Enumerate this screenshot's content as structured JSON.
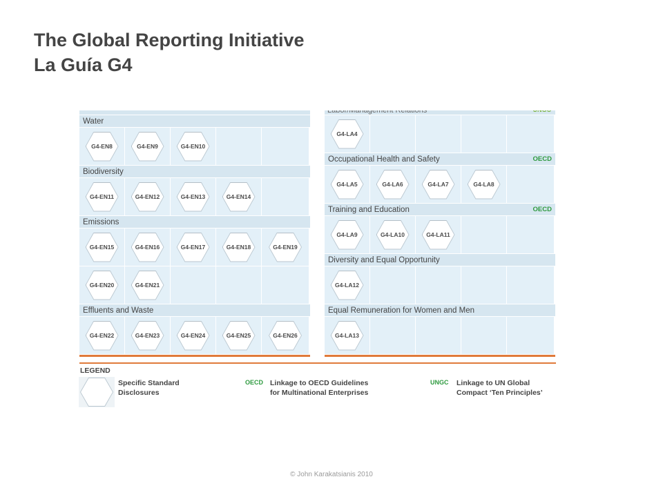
{
  "title": {
    "line1": "The Global Reporting Initiative",
    "line2": "La Guía G4"
  },
  "left_top_cut_row": true,
  "left_column": [
    {
      "name": "Water",
      "badge": "",
      "rows": [
        [
          "G4-EN8",
          "G4-EN9",
          "G4-EN10"
        ]
      ]
    },
    {
      "name": "Biodiversity",
      "badge": "",
      "rows": [
        [
          "G4-EN11",
          "G4-EN12",
          "G4-EN13",
          "G4-EN14"
        ]
      ]
    },
    {
      "name": "Emissions",
      "badge": "",
      "rows": [
        [
          "G4-EN15",
          "G4-EN16",
          "G4-EN17",
          "G4-EN18",
          "G4-EN19"
        ],
        [
          "G4-EN20",
          "G4-EN21"
        ]
      ]
    },
    {
      "name": "Effluents and Waste",
      "badge": "",
      "rows": [
        [
          "G4-EN22",
          "G4-EN23",
          "G4-EN24",
          "G4-EN25",
          "G4-EN26"
        ]
      ]
    }
  ],
  "right_top_cut": {
    "label": "Labor/Management Relations",
    "badge": "UNGC"
  },
  "right_column": [
    {
      "name": "",
      "badge": "",
      "rows": [
        [
          "G4-LA4"
        ]
      ],
      "no_header": true
    },
    {
      "name": "Occupational Health and Safety",
      "badge": "OECD",
      "rows": [
        [
          "G4-LA5",
          "G4-LA6",
          "G4-LA7",
          "G4-LA8"
        ]
      ]
    },
    {
      "name": "Training and Education",
      "badge": "OECD",
      "rows": [
        [
          "G4-LA9",
          "G4-LA10",
          "G4-LA11"
        ]
      ]
    },
    {
      "name": "Diversity and Equal Opportunity",
      "badge": "",
      "rows": [
        [
          "G4-LA12"
        ]
      ]
    },
    {
      "name": "Equal Remuneration for Women and Men",
      "badge": "",
      "rows": [
        [
          "G4-LA13"
        ]
      ]
    }
  ],
  "legend": {
    "title": "LEGEND",
    "item1": {
      "line1": "Specific Standard",
      "line2": "Disclosures"
    },
    "item2": {
      "badge": "OECD",
      "line1": "Linkage to OECD Guidelines",
      "line2": "for Multinational Enterprises"
    },
    "item3": {
      "badge": "UNGC",
      "line1": "Linkage to UN Global",
      "line2": "Compact ‘Ten Principles’"
    }
  },
  "footer": "© John Karakatsianis 2010",
  "colors": {
    "title": "#444444",
    "category_bg": "#d6e6f0",
    "cell_bg": "#e3f0f8",
    "accent_orange": "#e07a3a",
    "badge_green": "#2e9a3f"
  }
}
